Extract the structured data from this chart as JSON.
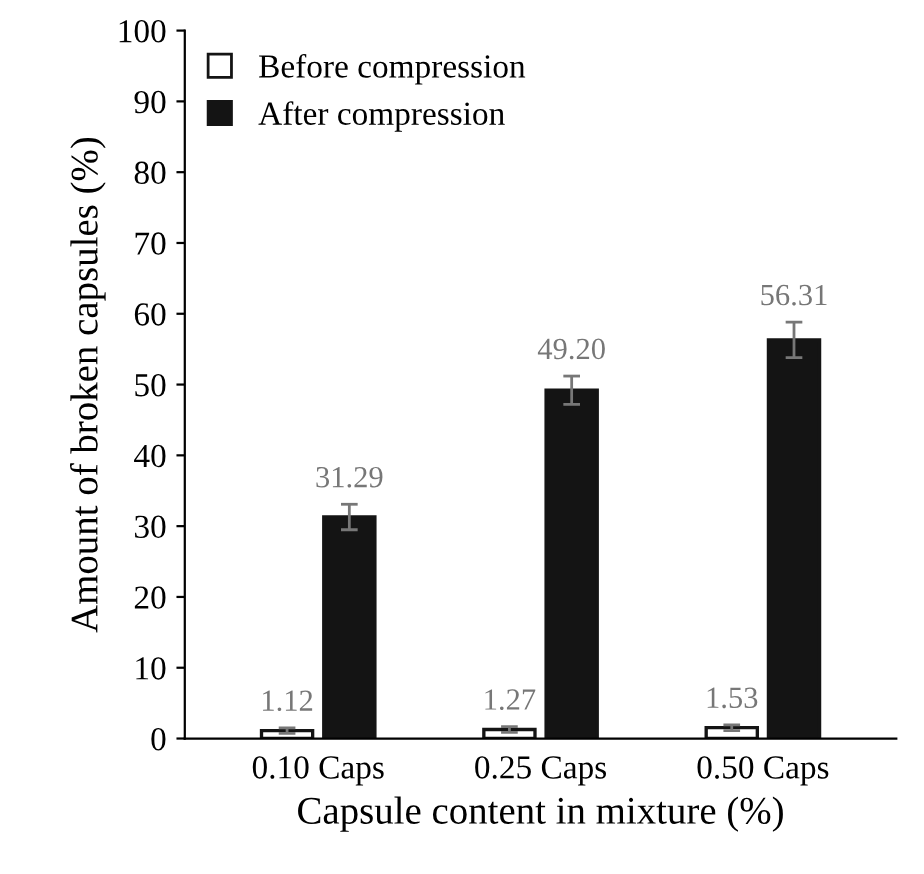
{
  "chart_data": {
    "type": "bar",
    "xlabel": "Capsule content in mixture (%)",
    "ylabel": "Amount of broken capsules (%)",
    "categories": [
      "0.10 Caps",
      "0.25 Caps",
      "0.50 Caps"
    ],
    "series": [
      {
        "name": "Before compression",
        "color": "#ffffff",
        "values": [
          1.12,
          1.27,
          1.53
        ],
        "errors": [
          0.4,
          0.4,
          0.4
        ],
        "value_labels": [
          "1.12",
          "1.27",
          "1.53"
        ]
      },
      {
        "name": "After compression",
        "color": "#141414",
        "values": [
          31.29,
          49.2,
          56.31
        ],
        "errors": [
          1.8,
          2.0,
          2.5
        ],
        "value_labels": [
          "31.29",
          "49.20",
          "56.31"
        ]
      }
    ],
    "ylim": [
      0,
      100
    ],
    "yticks": [
      0,
      10,
      20,
      30,
      40,
      50,
      60,
      70,
      80,
      90,
      100
    ],
    "legend": "top left",
    "grid": false
  }
}
